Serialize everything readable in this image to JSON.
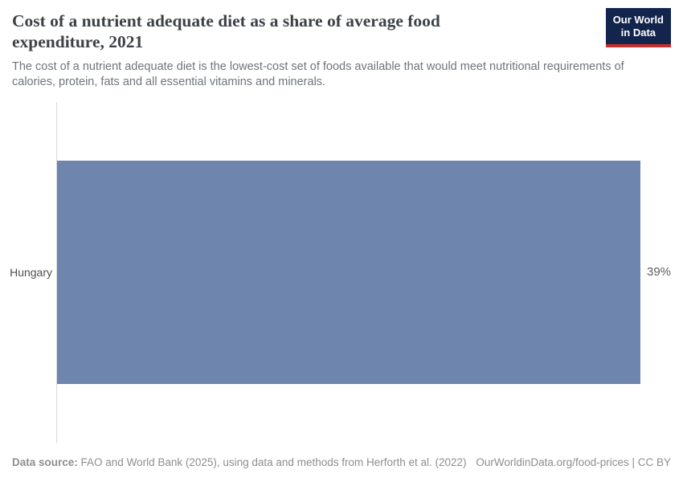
{
  "header": {
    "title": "Cost of a nutrient adequate diet as a share of average food expenditure, 2021",
    "subtitle": "The cost of a nutrient adequate diet is the lowest-cost set of foods available that would meet nutritional requirements of calories, protein, fats and all essential vitamins and minerals.",
    "logo_line1": "Our World",
    "logo_line2": "in Data"
  },
  "chart_data": {
    "type": "bar",
    "orientation": "horizontal",
    "title": "Cost of a nutrient adequate diet as a share of average food expenditure, 2021",
    "categories": [
      "Hungary"
    ],
    "values": [
      39
    ],
    "unit": "%",
    "value_labels": [
      "39%"
    ],
    "xlim": [
      0,
      39
    ],
    "x_axis_visible": false,
    "grid": false,
    "legend": "none",
    "bar_color": "#6e85ad"
  },
  "footer": {
    "datasource_label": "Data source:",
    "datasource_text": " FAO and World Bank (2025), using data and methods from Herforth et al. (2022)",
    "link_text": "OurWorldinData.org/food-prices | CC BY"
  },
  "colors": {
    "bar": "#6e85ad",
    "title_text": "#3d4248",
    "subtitle_text": "#6f747b",
    "axis_line": "#d9d9d9",
    "footer_text": "#8e8e8e",
    "logo_background": "#13254d",
    "logo_stripe": "#c5302f"
  }
}
